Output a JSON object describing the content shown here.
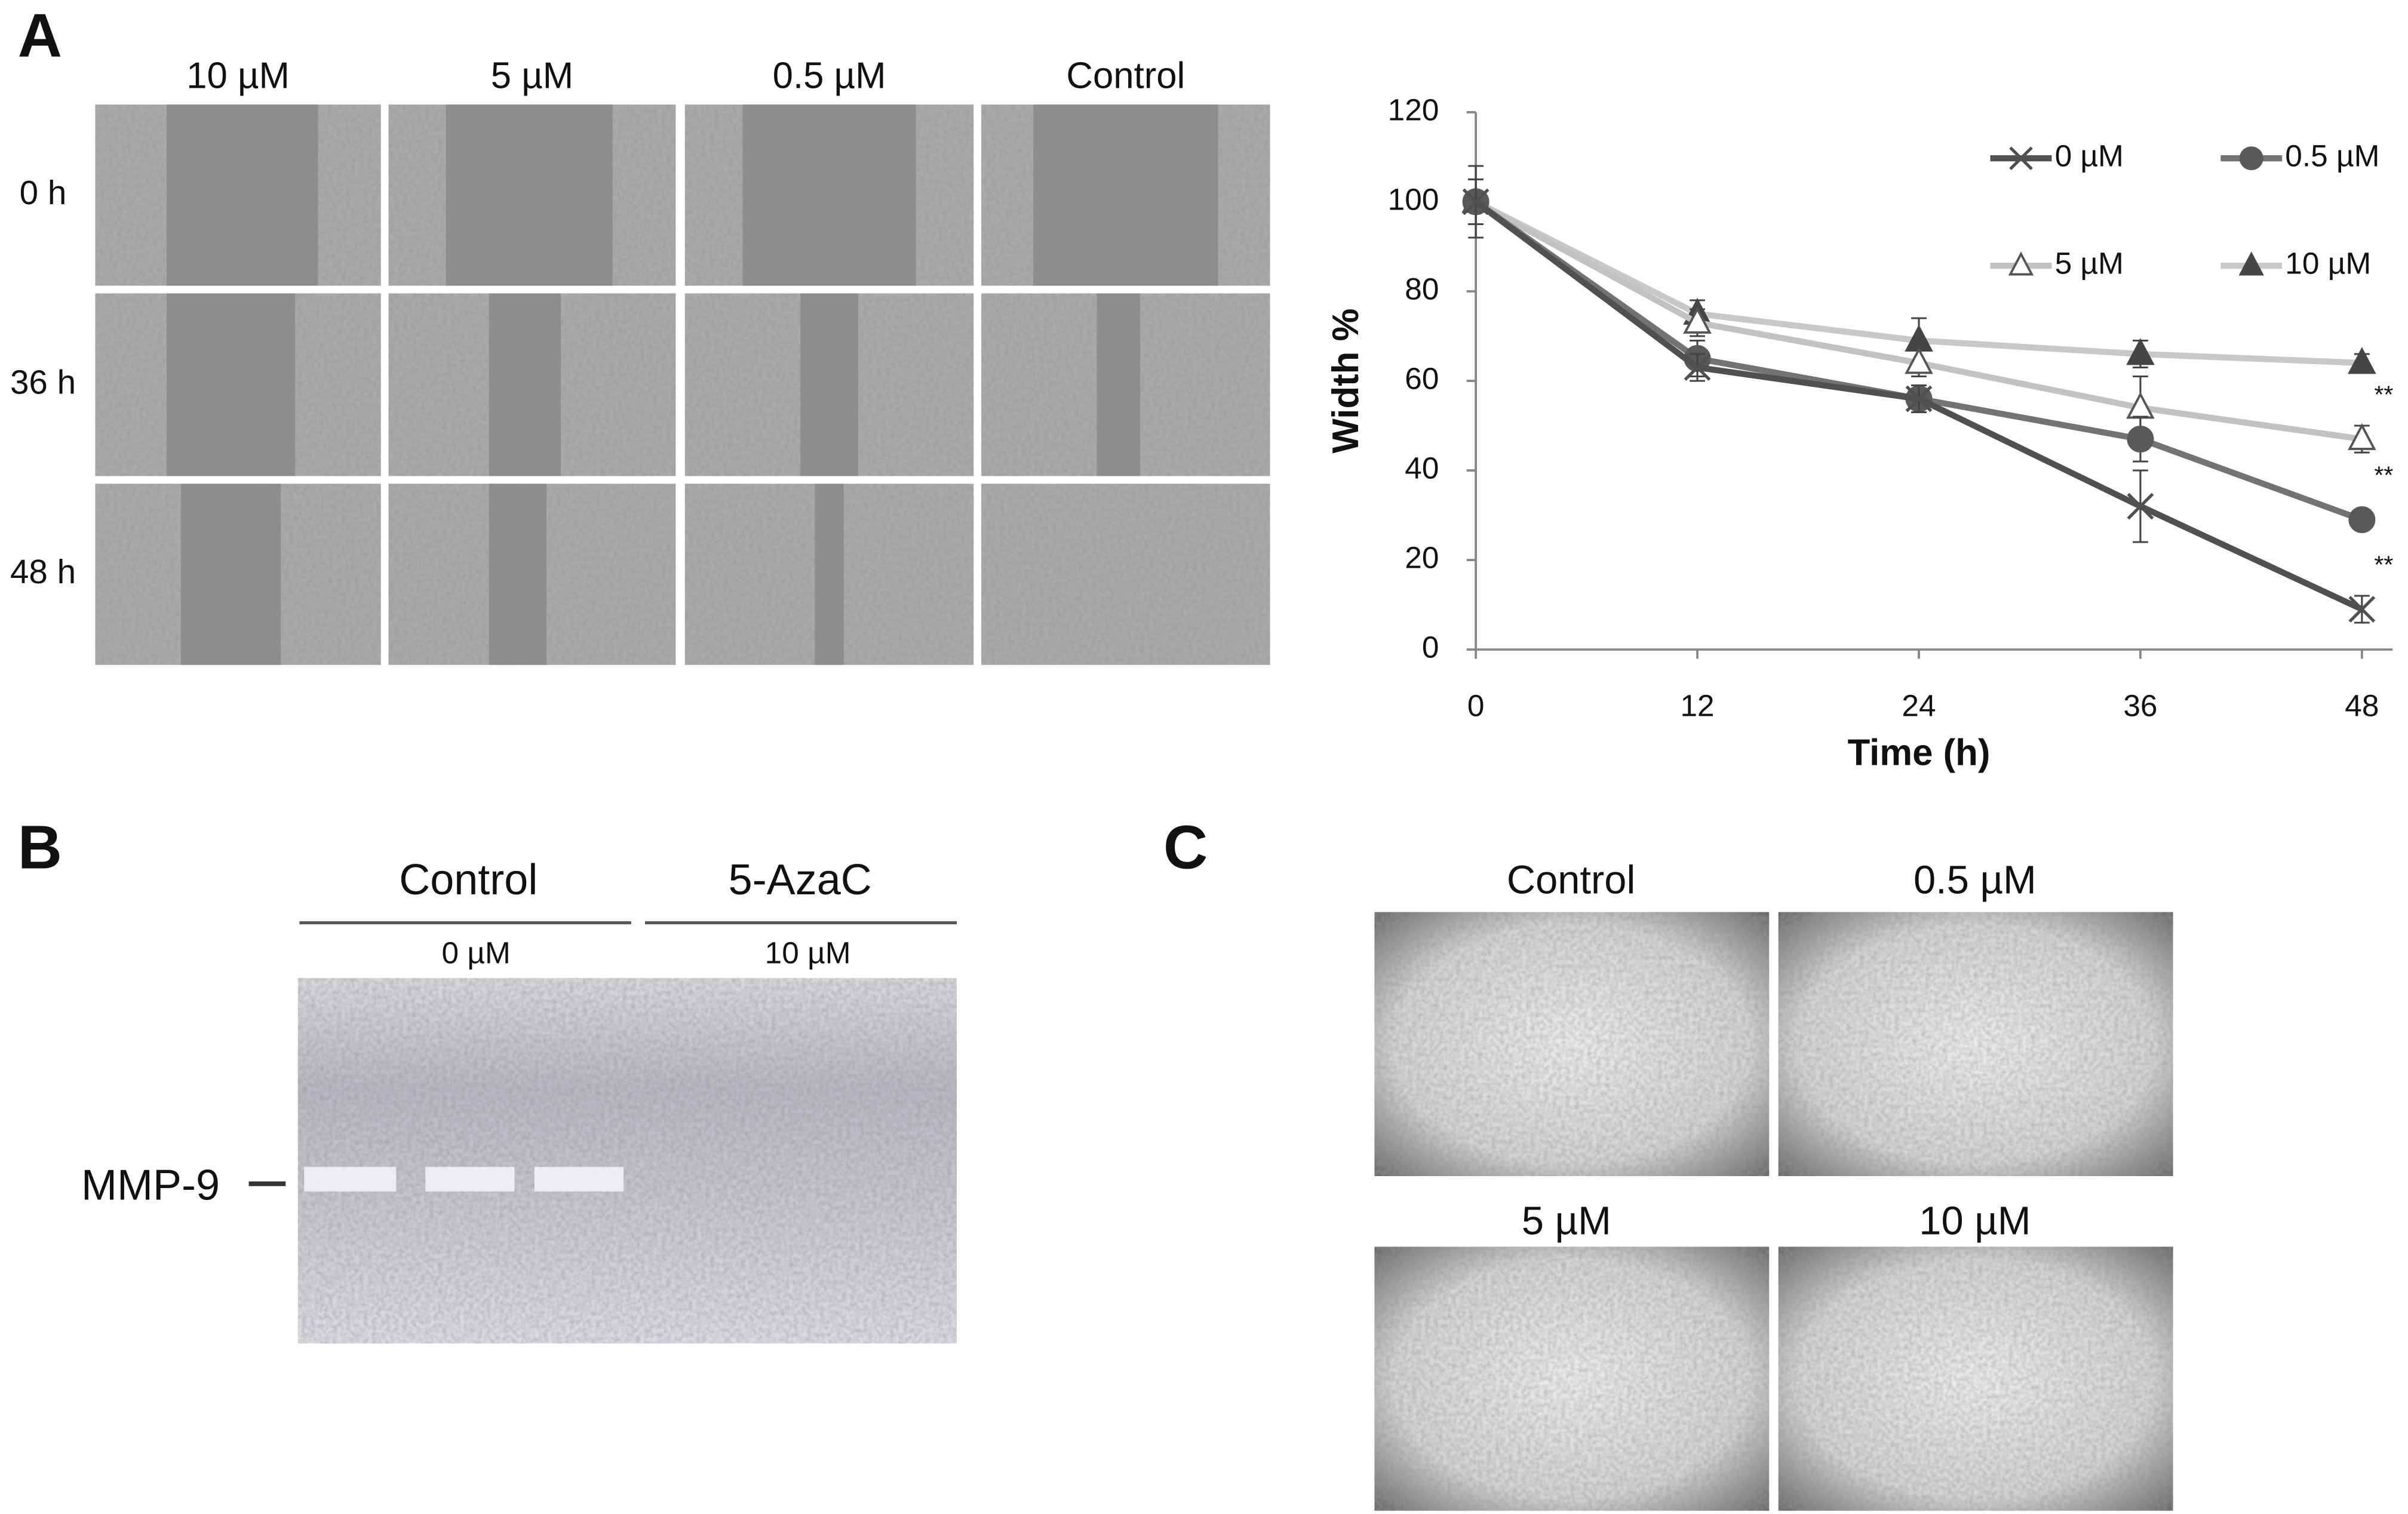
{
  "figure": {
    "panel_labels": [
      "A",
      "B",
      "C"
    ],
    "scratch_columns": [
      "10 µM",
      "5 µM",
      "0.5 µM",
      "Control"
    ],
    "scratch_rows": [
      "0 h",
      "36 h",
      "48 h"
    ],
    "gel": {
      "group_labels": [
        "Control",
        "5-AzaC"
      ],
      "dose_labels": [
        "0 µM",
        "10 µM"
      ],
      "band_label": "MMP-9"
    },
    "panel_c_labels": [
      "Control",
      "0.5 µM",
      "5 µM",
      "10 µM"
    ]
  },
  "chart_data": {
    "type": "line",
    "xlabel": "Time (h)",
    "ylabel": "Width %",
    "x": [
      0,
      12,
      24,
      36,
      48
    ],
    "xlim": [
      0,
      48
    ],
    "xticks": [
      0,
      12,
      24,
      36,
      48
    ],
    "ylim": [
      0,
      120
    ],
    "yticks": [
      0,
      20,
      40,
      60,
      80,
      100,
      120
    ],
    "grid": false,
    "legend": "top-right",
    "series": [
      {
        "name": "0 µM",
        "color": "#505050",
        "marker": "x",
        "marker_color": "#505050",
        "values": [
          100,
          63,
          56,
          32,
          9
        ],
        "errors": [
          8,
          3,
          3,
          8,
          3
        ]
      },
      {
        "name": "0.5 µM",
        "color": "#737373",
        "marker": "circle",
        "marker_color": "#595959",
        "values": [
          100,
          65,
          56,
          47,
          29
        ],
        "errors": [
          5,
          4,
          3,
          5,
          1
        ]
      },
      {
        "name": "5 µM",
        "color": "#c2c2c2",
        "marker": "open-triangle",
        "marker_color": "#ffffff",
        "values": [
          100,
          73,
          64,
          54,
          47
        ],
        "errors": [
          5,
          3,
          3,
          7,
          3
        ]
      },
      {
        "name": "10 µM",
        "color": "#c8c8c8",
        "marker": "triangle",
        "marker_color": "#454545",
        "values": [
          100,
          75,
          69,
          66,
          64
        ],
        "errors": [
          5,
          3,
          5,
          3,
          2
        ]
      }
    ],
    "annotations": [
      {
        "text": "**",
        "series": "0 µM",
        "x": 48
      },
      {
        "text": "**",
        "series": "0.5 µM",
        "x": 48
      },
      {
        "text": "**",
        "series": "5 µM",
        "x": 48
      }
    ]
  }
}
